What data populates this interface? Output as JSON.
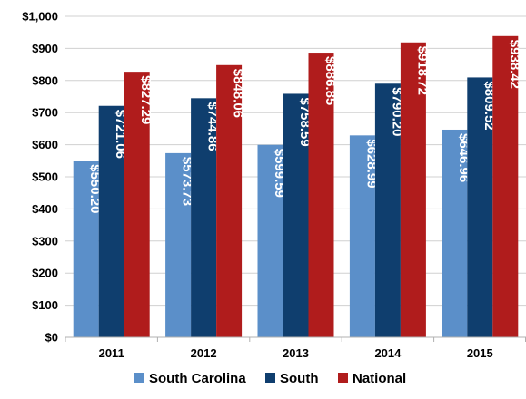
{
  "chart_data": {
    "type": "bar",
    "title": "",
    "xlabel": "",
    "ylabel": "",
    "categories": [
      "2011",
      "2012",
      "2013",
      "2014",
      "2015"
    ],
    "series": [
      {
        "name": "South Carolina",
        "color": "#5b8fc9",
        "values": [
          550.2,
          573.73,
          599.59,
          628.99,
          646.96
        ],
        "labels": [
          "$550.20",
          "$573.73",
          "$599.59",
          "$628.99",
          "$646.96"
        ]
      },
      {
        "name": "South",
        "color": "#0f3e6e",
        "values": [
          721.06,
          744.86,
          758.59,
          790.2,
          809.52
        ],
        "labels": [
          "$721.06",
          "$744.86",
          "$758.59",
          "$790.20",
          "$809.52"
        ]
      },
      {
        "name": "National",
        "color": "#b01c1c",
        "values": [
          827.29,
          848.06,
          886.85,
          918.72,
          938.42
        ],
        "labels": [
          "$827.29",
          "$848.06",
          "$886.85",
          "$918.72",
          "$938.42"
        ]
      }
    ],
    "ylim": [
      0,
      1000
    ],
    "yticks": [
      0,
      100,
      200,
      300,
      400,
      500,
      600,
      700,
      800,
      900,
      1000
    ],
    "ytick_labels": [
      "$0",
      "$100",
      "$200",
      "$300",
      "$400",
      "$500",
      "$600",
      "$700",
      "$800",
      "$900",
      "$1,000"
    ],
    "grid": true,
    "legend_position": "bottom"
  }
}
